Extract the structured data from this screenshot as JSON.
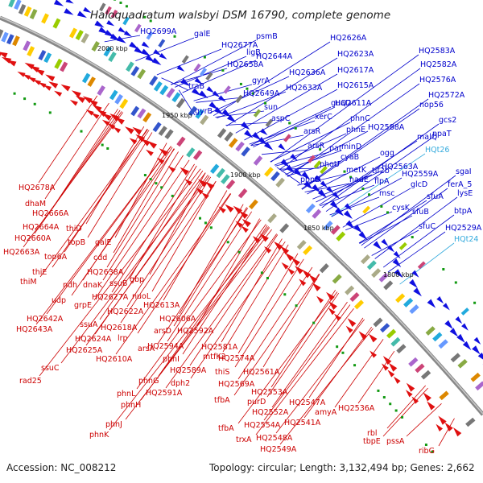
{
  "header": {
    "title": "Haloquadratum walsbyi DSM 16790, complete genome"
  },
  "footer": {
    "accession": "Accession: NC_008212",
    "summary": "Topology: circular; Length: 3,132,494 bp; Genes: 2,662"
  },
  "ticks": [
    "2000 kbp",
    "1950 kbp",
    "1900 kbp",
    "1850 kbp",
    "1800 kbp"
  ],
  "colors": {
    "forward_labels": "#0000cc",
    "reverse_labels": "#cc0000",
    "rna_labels": "#33aadd",
    "backbone": "#808080",
    "forward_features": "#1010e0",
    "reverse_features": "#e01010"
  },
  "blue_labels": [
    "HQ2699A",
    "galE",
    "psmB",
    "HQ2677A",
    "ligB",
    "HQ2658A",
    "HQ2644A",
    "HQ2626A",
    "HQ2623A",
    "HQ2583A",
    "HQ2582A",
    "gyrA",
    "HQ2636A",
    "HQ2617A",
    "traB",
    "HQ2649A",
    "HQ2633A",
    "HQ2615A",
    "HQ2576A",
    "sun",
    "gyrB",
    "aspC",
    "guaD",
    "HQ2611A",
    "HQ2572A",
    "nop56",
    "xerC",
    "phnC",
    "arsR",
    "gcs2",
    "phnE",
    "HQ2588A",
    "malQ",
    "ppaT",
    "arsR",
    "minD",
    "pat",
    "cyaB",
    "ogg",
    "HQt26",
    "phoU",
    "metK",
    "HQ2563A",
    "tif2b",
    "sgaI",
    "phnD",
    "nadE",
    "flpA",
    "HQ2559A",
    "ferA_5",
    "msc",
    "glcD",
    "lysE",
    "cysK",
    "sfuA",
    "btpA",
    "sfuB",
    "HQ2529A",
    "sfuC",
    "HQt24"
  ],
  "red_labels": [
    "HQ2678A",
    "dhaM",
    "HQ2666A",
    "HQ2664A",
    "thiD",
    "HQ2660A",
    "topB",
    "galE",
    "HQ2663A",
    "top6A",
    "cdd",
    "thiE",
    "HQ2638A",
    "gbp",
    "thiM",
    "ndh",
    "dnaK",
    "ssuB",
    "udp",
    "HQ2627A",
    "nuoL",
    "grpE",
    "HQ2613A",
    "HQ2622A",
    "HQ2642A",
    "ssuA",
    "HQ2643A",
    "HQ2618A",
    "HQ2606A",
    "arsD",
    "lrp",
    "HQ2624A",
    "HQ2592A",
    "HQ2625A",
    "arsA",
    "HQ2594A",
    "HQ2581A",
    "HQ2610A",
    "phnI",
    "mtfK2",
    "HQ2574A",
    "ssuC",
    "HQ2589A",
    "thiS",
    "HQ2561A",
    "rad25",
    "phnG",
    "HQ2591A",
    "dph2",
    "HQ2569A",
    "phnL",
    "tfbA",
    "HQ2553A",
    "purD",
    "HQ2547A",
    "phnH",
    "HQ2552A",
    "amyA",
    "tfbA",
    "HQ2554A",
    "HQ2536A",
    "phnJ",
    "HQ2541A",
    "phnK",
    "trxA",
    "HQ2548A",
    "HQ2549A",
    "rbl",
    "tbpE",
    "pssA",
    "ribG"
  ]
}
